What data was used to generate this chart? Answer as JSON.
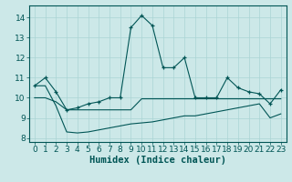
{
  "xlabel": "Humidex (Indice chaleur)",
  "bg_color": "#cce8e8",
  "grid_color": "#aad4d4",
  "line_color": "#005555",
  "xlim": [
    -0.5,
    23.5
  ],
  "ylim": [
    7.8,
    14.6
  ],
  "yticks": [
    8,
    9,
    10,
    11,
    12,
    13,
    14
  ],
  "xticks": [
    0,
    1,
    2,
    3,
    4,
    5,
    6,
    7,
    8,
    9,
    10,
    11,
    12,
    13,
    14,
    15,
    16,
    17,
    18,
    19,
    20,
    21,
    22,
    23
  ],
  "main_x": [
    0,
    1,
    2,
    3,
    4,
    5,
    6,
    7,
    8,
    9,
    10,
    11,
    12,
    13,
    14,
    15,
    16,
    17,
    18,
    19,
    20,
    21,
    22,
    23
  ],
  "main_y": [
    10.6,
    11.0,
    10.3,
    9.4,
    9.5,
    9.7,
    9.8,
    10.0,
    10.0,
    13.5,
    14.1,
    13.6,
    11.5,
    11.5,
    12.0,
    10.0,
    10.0,
    10.0,
    11.0,
    10.5,
    10.3,
    10.2,
    9.7,
    10.4
  ],
  "middle_x": [
    0,
    1,
    2,
    3,
    4,
    5,
    6,
    7,
    8,
    9,
    10,
    11,
    12,
    13,
    14,
    15,
    16,
    17,
    18,
    19,
    20,
    21,
    22,
    23
  ],
  "middle_y": [
    10.0,
    10.0,
    9.8,
    9.4,
    9.4,
    9.4,
    9.4,
    9.4,
    9.4,
    9.4,
    9.95,
    9.95,
    9.95,
    9.95,
    9.95,
    9.95,
    9.95,
    9.95,
    9.95,
    9.95,
    9.95,
    9.95,
    9.95,
    9.95
  ],
  "lower_x": [
    0,
    1,
    2,
    3,
    4,
    5,
    6,
    7,
    8,
    9,
    10,
    11,
    12,
    13,
    14,
    15,
    16,
    17,
    18,
    19,
    20,
    21,
    22,
    23
  ],
  "lower_y": [
    10.6,
    10.6,
    9.6,
    8.3,
    8.25,
    8.3,
    8.4,
    8.5,
    8.6,
    8.7,
    8.75,
    8.8,
    8.9,
    9.0,
    9.1,
    9.1,
    9.2,
    9.3,
    9.4,
    9.5,
    9.6,
    9.7,
    9.0,
    9.2
  ]
}
